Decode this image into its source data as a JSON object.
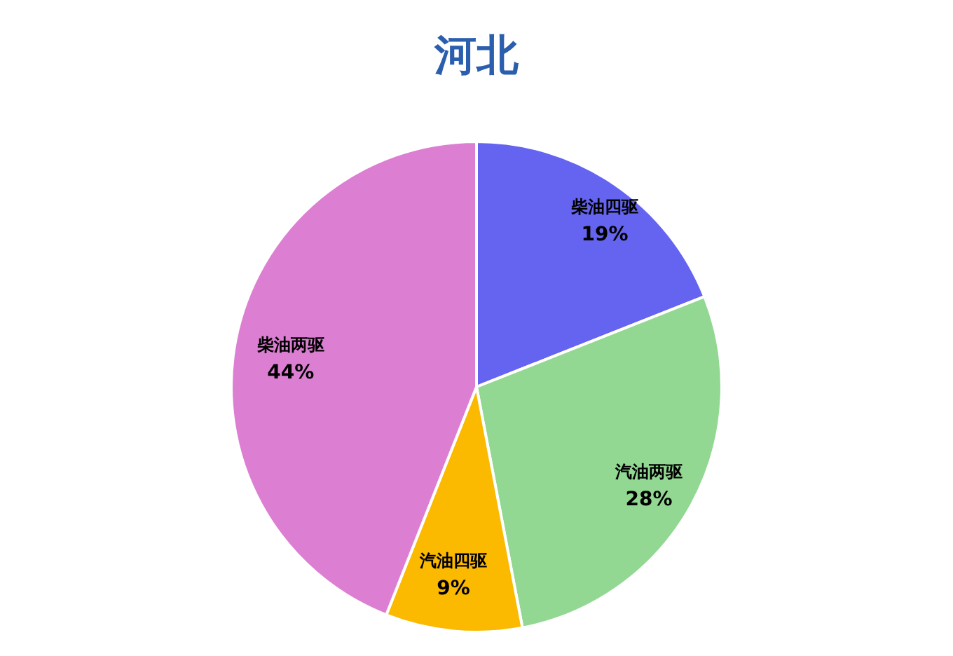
{
  "chart_data": {
    "type": "pie",
    "title": "河北",
    "categories": [
      "柴油四驱",
      "汽油两驱",
      "汽油四驱",
      "柴油两驱"
    ],
    "values": [
      19,
      28,
      9,
      44
    ],
    "colors": [
      "#6464f0",
      "#92d892",
      "#fbb900",
      "#dc7fd2"
    ],
    "value_labels": [
      "19%",
      "28%",
      "9%",
      "44%"
    ]
  }
}
